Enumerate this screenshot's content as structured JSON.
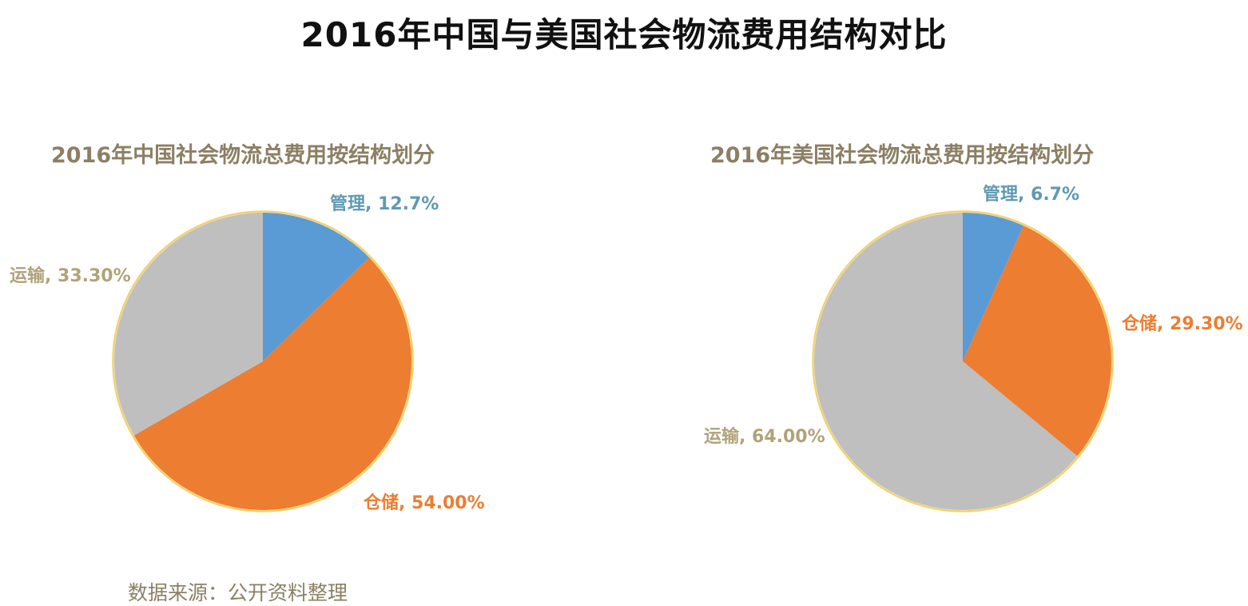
{
  "main_title": "2016年中国与美国社会物流费用结构对比",
  "source_note": "数据来源：公开资料整理",
  "colors": {
    "title_text": "#111111",
    "chart_title_text": "#8c7f64",
    "管理": "#5b9bd5",
    "仓储": "#ed7d31",
    "运输": "#bfbfbf",
    "label_管理": "#5f99b4",
    "label_仓储": "#ed7d31",
    "label_运输": "#b0a37a",
    "pie_border": "#f2d26e"
  },
  "chart_data": [
    {
      "type": "pie",
      "title": "2016年中国社会物流总费用按结构划分",
      "slices": [
        {
          "name": "管理",
          "value": 12.7,
          "label": "管理, 12.7%"
        },
        {
          "name": "仓储",
          "value": 54.0,
          "label": "仓储, 54.00%"
        },
        {
          "name": "运输",
          "value": 33.3,
          "label": "运输, 33.30%"
        }
      ]
    },
    {
      "type": "pie",
      "title": "2016年美国社会物流总费用按结构划分",
      "slices": [
        {
          "name": "管理",
          "value": 6.7,
          "label": "管理, 6.7%"
        },
        {
          "name": "仓储",
          "value": 29.3,
          "label": "仓储, 29.30%"
        },
        {
          "name": "运输",
          "value": 64.0,
          "label": "运输, 64.00%"
        }
      ]
    }
  ]
}
